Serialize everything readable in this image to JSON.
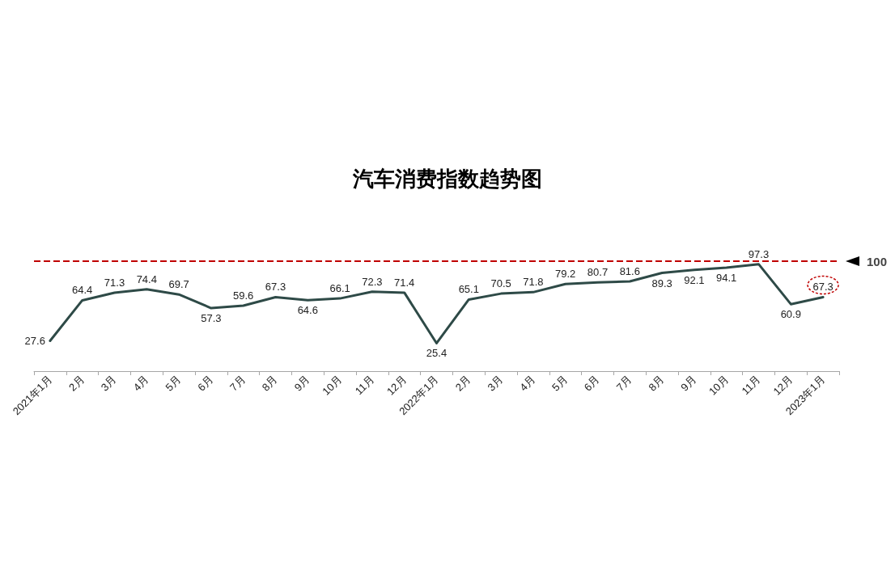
{
  "chart_data": {
    "type": "line",
    "title": "汽车消费指数趋势图",
    "categories": [
      "2021年1月",
      "2月",
      "3月",
      "4月",
      "5月",
      "6月",
      "7月",
      "8月",
      "9月",
      "10月",
      "11月",
      "12月",
      "2022年1月",
      "2月",
      "3月",
      "4月",
      "5月",
      "6月",
      "7月",
      "8月",
      "9月",
      "10月",
      "11月",
      "12月",
      "2023年1月"
    ],
    "series": [
      {
        "color": "#2e4a47",
        "values": [
          27.6,
          64.4,
          71.3,
          74.4,
          69.7,
          57.3,
          59.6,
          67.3,
          64.6,
          66.1,
          72.3,
          71.4,
          25.4,
          65.1,
          70.5,
          71.8,
          79.2,
          80.7,
          81.6,
          89.3,
          92.1,
          94.1,
          97.3,
          60.9,
          67.3
        ]
      }
    ],
    "tick_labels": "x",
    "marker": "none",
    "line_style": "solid",
    "data_labels": true,
    "ref_lines": [
      {
        "axis": "y",
        "value": 100,
        "label": "100",
        "color": "#c00000",
        "line_style": "dashed"
      }
    ]
  }
}
